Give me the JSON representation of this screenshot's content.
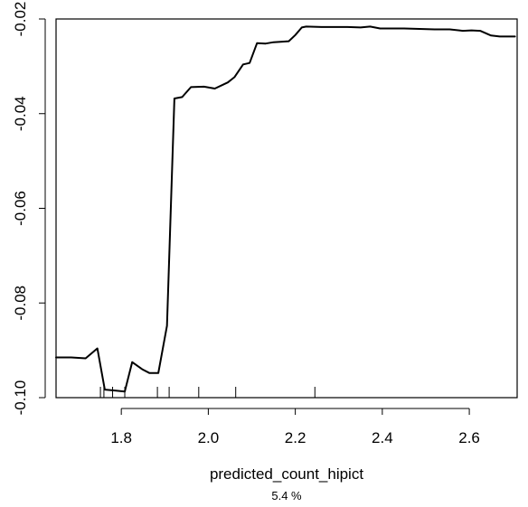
{
  "chart_data": {
    "type": "line",
    "title": "",
    "xlabel": "predicted_count_hipict",
    "xlabel_note": "5.4 %",
    "ylabel": "",
    "xlim": [
      1.65,
      2.71
    ],
    "ylim": [
      -0.1,
      -0.02
    ],
    "x_ticks": [
      1.8,
      2.0,
      2.2,
      2.4,
      2.6
    ],
    "x_tick_labels": [
      "1.8",
      "2.0",
      "2.2",
      "2.4",
      "2.6"
    ],
    "y_ticks": [
      -0.1,
      -0.08,
      -0.06,
      -0.04,
      -0.02
    ],
    "y_tick_labels": [
      "-0.10",
      "-0.08",
      "-0.06",
      "-0.04",
      "-0.02"
    ],
    "grid": false,
    "series": [
      {
        "x": [
          1.65,
          1.685,
          1.718,
          1.745,
          1.762,
          1.785,
          1.808,
          1.825,
          1.848,
          1.865,
          1.885,
          1.905,
          1.922,
          1.94,
          1.96,
          1.99,
          2.015,
          2.045,
          2.06,
          2.08,
          2.095,
          2.112,
          2.132,
          2.15,
          2.17,
          2.185,
          2.2,
          2.215,
          2.225,
          2.26,
          2.32,
          2.35,
          2.372,
          2.395,
          2.45,
          2.52,
          2.555,
          2.585,
          2.605,
          2.625,
          2.65,
          2.67,
          2.705
        ],
        "y": [
          -0.0915,
          -0.0915,
          -0.0917,
          -0.0896,
          -0.0983,
          -0.0985,
          -0.0987,
          -0.0925,
          -0.094,
          -0.0948,
          -0.0948,
          -0.0848,
          -0.0368,
          -0.0365,
          -0.0344,
          -0.0343,
          -0.0347,
          -0.0334,
          -0.0323,
          -0.0296,
          -0.0293,
          -0.0251,
          -0.0252,
          -0.0249,
          -0.0248,
          -0.0247,
          -0.0234,
          -0.0218,
          -0.0216,
          -0.0217,
          -0.0217,
          -0.0218,
          -0.0216,
          -0.022,
          -0.022,
          -0.0222,
          -0.0222,
          -0.0225,
          -0.0224,
          -0.0225,
          -0.0235,
          -0.0237,
          -0.0237
        ]
      }
    ],
    "rug_x": [
      1.752,
      1.76,
      1.78,
      1.808,
      1.883,
      1.91,
      1.978,
      2.063,
      2.245
    ]
  }
}
